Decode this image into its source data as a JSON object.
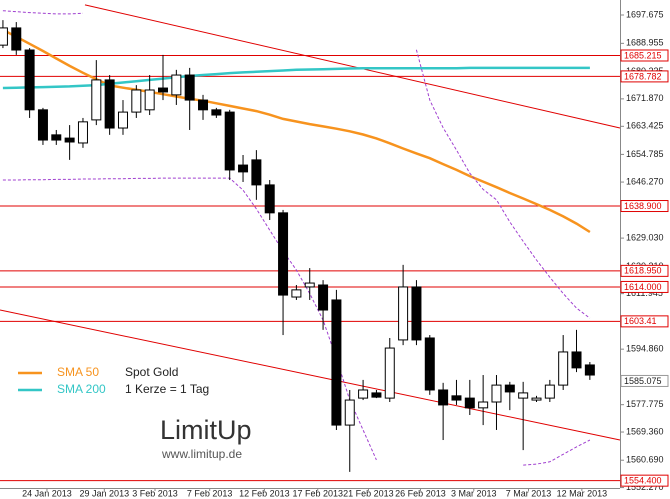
{
  "chart_data": {
    "type": "candlestick",
    "instrument": "Spot Gold",
    "note": "1 Kerze = 1 Tag",
    "logo": {
      "text": "LimitUp",
      "url": "www.limitup.de"
    },
    "categories": [
      null,
      null,
      null,
      null,
      null,
      null,
      null,
      null,
      null,
      null,
      null,
      null,
      null,
      null,
      null,
      null,
      null,
      null,
      null,
      null,
      null,
      null,
      null,
      null,
      null,
      null,
      null,
      null,
      null,
      null,
      null,
      null,
      null,
      null,
      null,
      null,
      null,
      null,
      null,
      null,
      null,
      null,
      null,
      null,
      null
    ],
    "open": [
      1688.4,
      1693.7,
      1686.9,
      1668.5,
      1660.8,
      1659.8,
      1658.3,
      1665.4,
      1677.7,
      1662.9,
      1667.8,
      1668.5,
      1675.2,
      1673.1,
      1679.2,
      1671.5,
      1668.5,
      1667.8,
      1651.5,
      1653.1,
      1645.4,
      1636.8,
      1610.9,
      1614.0,
      1614.6,
      1610.0,
      1571.5,
      1579.8,
      1581.4,
      1579.8,
      1597.7,
      1614.0,
      1598.3,
      1582.3,
      1580.5,
      1579.8,
      1576.8,
      1578.6,
      1583.8,
      1579.8,
      1579.2,
      1579.8,
      1583.8,
      1594.0,
      1590.0
    ],
    "high": [
      1696.1,
      1695.5,
      1687.5,
      1669.1,
      1662.3,
      1663.8,
      1666.0,
      1683.8,
      1679.2,
      1671.5,
      1676.1,
      1679.2,
      1685.4,
      1680.8,
      1681.4,
      1673.1,
      1669.1,
      1668.5,
      1654.6,
      1656.1,
      1646.9,
      1637.7,
      1614.6,
      1619.8,
      1616.1,
      1613.1,
      1582.3,
      1585.4,
      1582.3,
      1598.3,
      1620.8,
      1616.1,
      1599.2,
      1584.5,
      1585.4,
      1585.4,
      1586.9,
      1586.9,
      1584.8,
      1584.8,
      1580.5,
      1585.4,
      1599.2,
      1600.8,
      1590.9
    ],
    "low": [
      1687.5,
      1685.4,
      1666.0,
      1657.7,
      1657.7,
      1653.1,
      1656.8,
      1663.8,
      1660.8,
      1660.8,
      1666.0,
      1666.9,
      1671.5,
      1670.0,
      1662.3,
      1665.4,
      1666.0,
      1646.9,
      1646.3,
      1640.8,
      1634.6,
      1599.2,
      1610.0,
      1610.0,
      1600.8,
      1570.0,
      1557.1,
      1579.2,
      1579.8,
      1578.6,
      1596.1,
      1596.1,
      1580.8,
      1566.9,
      1577.7,
      1574.6,
      1571.5,
      1570.0,
      1576.1,
      1563.8,
      1578.6,
      1578.6,
      1582.3,
      1587.8,
      1585.4
    ],
    "close": [
      1693.7,
      1686.9,
      1668.5,
      1659.2,
      1659.2,
      1658.6,
      1664.8,
      1677.7,
      1662.9,
      1667.8,
      1674.6,
      1674.6,
      1674.0,
      1679.2,
      1671.5,
      1668.5,
      1666.9,
      1650.0,
      1649.4,
      1645.4,
      1636.8,
      1611.5,
      1613.1,
      1615.2,
      1606.9,
      1571.5,
      1579.2,
      1582.3,
      1580.1,
      1595.2,
      1614.0,
      1597.7,
      1582.3,
      1577.7,
      1579.2,
      1576.8,
      1578.6,
      1583.8,
      1581.7,
      1581.4,
      1579.8,
      1583.8,
      1594.0,
      1589.1,
      1586.9
    ],
    "series": [
      {
        "name": "SMA 50",
        "color": "#f7931e",
        "values": [
          1693.1,
          1691.0,
          1688.8,
          1686.6,
          1684.3,
          1682.0,
          1679.9,
          1677.9,
          1676.0,
          1675.3,
          1674.7,
          1674.0,
          1673.3,
          1672.6,
          1671.9,
          1671.3,
          1670.5,
          1669.7,
          1668.9,
          1668.1,
          1667.0,
          1665.7,
          1664.9,
          1664.1,
          1663.4,
          1662.7,
          1661.9,
          1660.9,
          1659.7,
          1658.2,
          1656.6,
          1655.1,
          1653.6,
          1651.8,
          1650.0,
          1648.1,
          1646.4,
          1644.7,
          1642.9,
          1641.2,
          1639.5,
          1637.7,
          1635.7,
          1633.5,
          1630.9
        ]
      },
      {
        "name": "SMA 200",
        "color": "#33c6c6",
        "values": [
          1675.2,
          1675.3,
          1675.4,
          1675.5,
          1675.6,
          1675.7,
          1675.9,
          1676.1,
          1676.5,
          1676.9,
          1677.3,
          1677.7,
          1678.1,
          1678.5,
          1678.9,
          1679.2,
          1679.5,
          1679.8,
          1680.0,
          1680.2,
          1680.4,
          1680.6,
          1680.8,
          1680.9,
          1681.0,
          1681.1,
          1681.2,
          1681.3,
          1681.3,
          1681.3,
          1681.3,
          1681.3,
          1681.3,
          1681.3,
          1681.3,
          1681.4,
          1681.4,
          1681.4,
          1681.4,
          1681.4,
          1681.4,
          1681.4,
          1681.4,
          1681.4,
          1681.4
        ]
      },
      {
        "color": "#a040d0",
        "dashed": true,
        "values": [
          1699.0,
          1698.7,
          1698.4,
          1698.2,
          1698.0,
          1698.0,
          1698.2,
          null,
          null,
          null,
          null,
          null,
          null,
          null,
          null,
          null,
          null,
          null,
          null,
          null,
          null,
          null,
          null,
          null,
          null,
          null,
          null,
          null,
          null,
          null,
          null,
          1687.0,
          1671.5,
          1663.0,
          1656.1,
          1649.0,
          1644.0,
          1640.8,
          1634.0,
          1628.0,
          1622.3,
          1617.0,
          1612.0,
          1607.5,
          1604.4
        ]
      },
      {
        "color": "#a040d0",
        "dashed": true,
        "values": [
          1646.9,
          1646.9,
          1647.0,
          1647.0,
          1647.1,
          1647.1,
          1647.2,
          1647.2,
          1647.3,
          1647.3,
          1647.4,
          1647.4,
          1647.5,
          1647.5,
          1647.5,
          1647.5,
          1647.5,
          1647.5,
          1643.8,
          1638.0,
          1631.5,
          1625.0,
          1619.2,
          1612.0,
          1603.8,
          1592.0,
          1579.2,
          1570.0,
          1560.8,
          null,
          null,
          null,
          null,
          null,
          null,
          null,
          null,
          null,
          null,
          1559.2,
          1559.5,
          1560.2,
          1562.5,
          1564.8,
          1566.9
        ]
      }
    ],
    "trendlines": [
      {
        "x": [
          6.15,
          46.26
        ],
        "values": [
          1700.8,
          1662.9
        ]
      },
      {
        "x": [
          -0.22,
          46.26
        ],
        "values": [
          1606.9,
          1566.9
        ]
      }
    ],
    "levels": [
      1685.215,
      1678.782,
      {
        "value": 1638.9,
        "label": "1638.900"
      },
      {
        "value": 1618.95,
        "label": "1618.950"
      },
      {
        "value": 1614.0,
        "label": "1614.000"
      },
      1603.41,
      {
        "value": 1554.4,
        "label": "1554.400"
      }
    ],
    "level_color": "#e00000",
    "last_price": 1585.075,
    "xlim": [
      -0.22,
      46.26
    ],
    "ylim": [
      1552.14,
      1702.29
    ],
    "yticks": [
      1697.675,
      1688.955,
      1680.235,
      {
        "value": 1671.87,
        "label": "1671.870"
      },
      1663.425,
      1654.785,
      {
        "value": 1646.27,
        "label": "1646.270"
      },
      {
        "value": 1629.03,
        "label": "1629.030"
      },
      {
        "value": 1620.31,
        "label": "1620.310"
      },
      1611.945,
      {
        "value": 1594.86,
        "label": "1594.860"
      },
      1577.775,
      {
        "value": 1569.36,
        "label": "1569.360"
      },
      {
        "value": 1560.69,
        "label": "1560.690"
      },
      {
        "value": 1552.27,
        "label": "1552.270"
      }
    ],
    "xticks": [
      {
        "value": 3.3,
        "label": "24 Jan 2013"
      },
      {
        "value": 7.6,
        "label": "29 Jan 2013"
      },
      {
        "value": 11.4,
        "label": "3 Feb 2013"
      },
      {
        "value": 15.5,
        "label": "7 Feb 2013"
      },
      {
        "value": 19.6,
        "label": "12 Feb 2013"
      },
      {
        "value": 23.6,
        "label": "17 Feb 2013"
      },
      {
        "value": 27.4,
        "label": "21 Feb 2013"
      },
      {
        "value": 31.3,
        "label": "26 Feb 2013"
      },
      {
        "value": 35.3,
        "label": "3 Mar 2013"
      },
      {
        "value": 39.4,
        "label": "7 Mar 2013"
      },
      {
        "value": 43.4,
        "label": "12 Mar 2013"
      }
    ]
  }
}
